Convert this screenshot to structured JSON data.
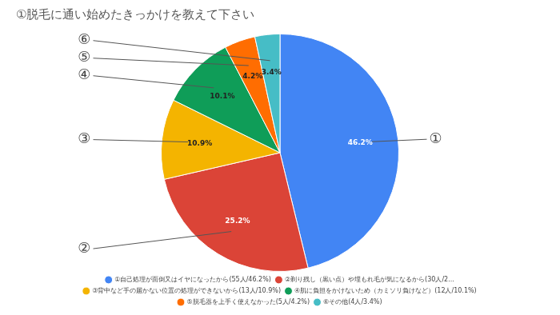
{
  "chart_data": {
    "type": "pie",
    "title": "①脱毛に通い始めたきっかけを教えて下さい",
    "categories": [
      "①自己処理が面倒又はイヤになったから(55人/46.2%)",
      "②剃り残し（黒い点）や埋もれ毛が気になるから(30人/2...",
      "③背中など手の届かない位置の処理ができないから(13人/10.9%)",
      "④肌に負担をかけないため（カミソリ負けなど）(12人/10.1%)",
      "⑤脱毛器を上手く使えなかった(5人/4.2%)",
      "⑥その他(4人/3.4%)"
    ],
    "values": [
      46.2,
      25.2,
      10.9,
      10.1,
      4.2,
      3.4
    ],
    "value_labels": [
      "46.2%",
      "25.2%",
      "10.9%",
      "10.1%",
      "4.2%",
      "3.4%"
    ],
    "colors": [
      "#4285f4",
      "#db4437",
      "#f4b400",
      "#0f9d58",
      "#ff6d01",
      "#46bdc6"
    ],
    "annotations": [
      "①",
      "②",
      "③",
      "④",
      "⑤",
      "⑥"
    ],
    "data_labels": true,
    "legend": "bottom"
  }
}
